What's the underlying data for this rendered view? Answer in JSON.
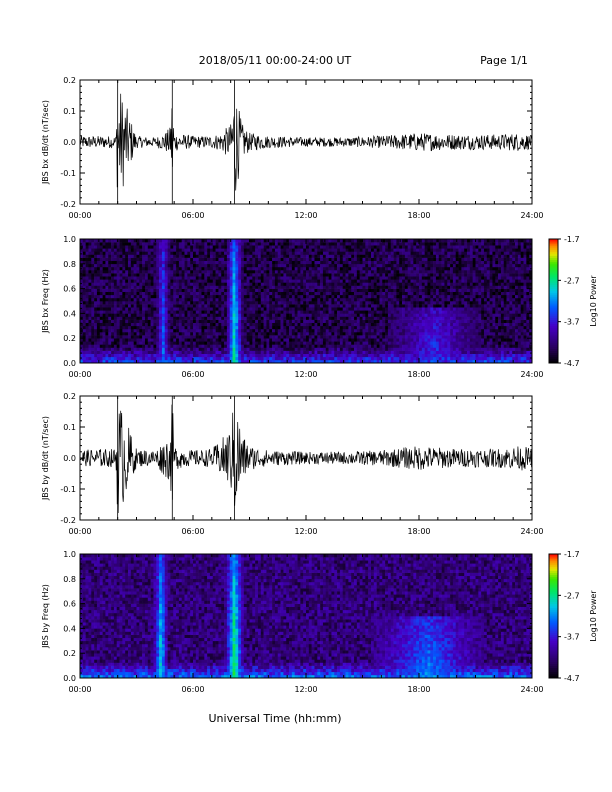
{
  "header": {
    "title": "2018/05/11  00:00-24:00 UT",
    "page_label": "Page 1/1"
  },
  "footer": {
    "xlabel": "Universal Time (hh:mm)"
  },
  "colorbar": {
    "label": "Log10 Power",
    "ticks": [
      "-1.7",
      "-2.7",
      "-3.7",
      "-4.7"
    ],
    "range": [
      -4.7,
      -1.7
    ]
  },
  "chart_data": [
    {
      "type": "line",
      "ylabel": "JBS bx dB/dt (nT/sec)",
      "xlim": [
        0,
        24
      ],
      "ylim": [
        -0.2,
        0.2
      ],
      "xticks": [
        "00:00",
        "06:00",
        "12:00",
        "18:00",
        "24:00"
      ],
      "yticks": [
        "0.2",
        "0.1",
        "0.0",
        "-0.1",
        "-0.2"
      ],
      "series": [
        {
          "x": [
            0.0,
            1.0,
            1.9,
            2.0,
            3.0,
            4.0,
            4.5,
            4.8,
            4.9,
            5.0,
            5.5,
            6.0,
            7.0,
            7.5,
            8.0,
            8.2,
            8.4,
            8.6,
            9.0,
            10.0,
            12.0,
            14.0,
            16.0,
            18.0,
            20.0,
            22.0,
            23.5,
            24.0
          ],
          "amplitude": [
            0.02,
            0.02,
            0.02,
            0.2,
            0.02,
            0.015,
            0.03,
            0.05,
            0.2,
            0.03,
            0.025,
            0.02,
            0.02,
            0.03,
            0.06,
            0.2,
            0.12,
            0.06,
            0.03,
            0.02,
            0.015,
            0.015,
            0.02,
            0.03,
            0.025,
            0.025,
            0.03,
            0.02
          ]
        }
      ]
    },
    {
      "type": "heatmap",
      "ylabel": "JBS bx Freq (Hz)",
      "xlim": [
        0,
        24
      ],
      "ylim": [
        0.0,
        1.0
      ],
      "xticks": [
        "00:00",
        "06:00",
        "12:00",
        "18:00",
        "24:00"
      ],
      "yticks": [
        "1.0",
        "0.8",
        "0.6",
        "0.4",
        "0.2",
        "0.0"
      ],
      "background_log_power": -4.4,
      "bursts": [
        {
          "time": 4.4,
          "width_hr": 0.35,
          "log_power": -3.2,
          "fmax": 1.0
        },
        {
          "time": 8.2,
          "width_hr": 0.45,
          "log_power": -2.6,
          "fmax": 1.0
        },
        {
          "time": 18.8,
          "width_hr": 2.5,
          "log_power": -3.5,
          "fmax": 0.45
        }
      ]
    },
    {
      "type": "line",
      "ylabel": "JBS by dB/dt (nT/sec)",
      "xlim": [
        0,
        24
      ],
      "ylim": [
        -0.2,
        0.2
      ],
      "xticks": [
        "00:00",
        "06:00",
        "12:00",
        "18:00",
        "24:00"
      ],
      "yticks": [
        "0.2",
        "0.1",
        "0.0",
        "-0.1",
        "-0.2"
      ],
      "series": [
        {
          "x": [
            0.0,
            1.0,
            1.9,
            2.0,
            3.0,
            4.0,
            4.5,
            4.8,
            4.9,
            5.0,
            5.5,
            6.0,
            7.0,
            7.5,
            8.0,
            8.2,
            8.4,
            8.6,
            9.0,
            10.0,
            12.0,
            14.0,
            16.0,
            18.0,
            20.0,
            22.0,
            23.5,
            24.0
          ],
          "amplitude": [
            0.025,
            0.03,
            0.03,
            0.2,
            0.03,
            0.025,
            0.06,
            0.08,
            0.2,
            0.04,
            0.03,
            0.025,
            0.03,
            0.06,
            0.1,
            0.2,
            0.15,
            0.08,
            0.04,
            0.025,
            0.02,
            0.02,
            0.025,
            0.04,
            0.03,
            0.03,
            0.04,
            0.03
          ]
        }
      ]
    },
    {
      "type": "heatmap",
      "ylabel": "JBS by Freq (Hz)",
      "xlim": [
        0,
        24
      ],
      "ylim": [
        0.0,
        1.0
      ],
      "xticks": [
        "00:00",
        "06:00",
        "12:00",
        "18:00",
        "24:00"
      ],
      "yticks": [
        "1.0",
        "0.8",
        "0.6",
        "0.4",
        "0.2",
        "0.0"
      ],
      "background_log_power": -4.2,
      "bursts": [
        {
          "time": 4.3,
          "width_hr": 0.4,
          "log_power": -2.8,
          "fmax": 1.0
        },
        {
          "time": 8.2,
          "width_hr": 0.5,
          "log_power": -2.4,
          "fmax": 1.0
        },
        {
          "time": 18.5,
          "width_hr": 3.0,
          "log_power": -3.2,
          "fmax": 0.5
        }
      ]
    }
  ]
}
